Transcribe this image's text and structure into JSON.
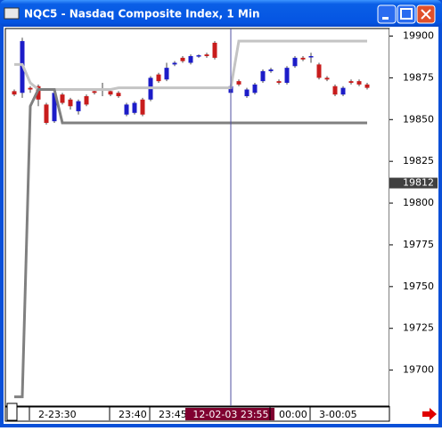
{
  "window_title": "NQC5 - Nasdaq Composite Index, 1 Min",
  "chart_data": {
    "type": "candlestick",
    "categories": [
      null,
      null,
      "2-23:30",
      null,
      null,
      null,
      null,
      null,
      null,
      null,
      null,
      null,
      "23:40",
      null,
      null,
      null,
      null,
      "23:45",
      null,
      null,
      null,
      null,
      null,
      null,
      null,
      null,
      null,
      "12-02-03  23:55",
      null,
      null,
      null,
      null,
      "00:00",
      null,
      null,
      null,
      null,
      "3-00:05",
      null,
      null,
      null,
      null,
      null,
      null,
      null
    ],
    "open": [
      19867,
      19866,
      19869,
      19870,
      19859,
      19849,
      19865,
      19862,
      19855,
      19864,
      19867,
      19868,
      19867,
      19866,
      19853,
      19854,
      19862,
      19862,
      19877,
      19874,
      19883,
      19887,
      19884,
      19888,
      19889,
      19896,
      null,
      19866,
      19873,
      19864,
      19866,
      19873,
      19879,
      19873,
      19872,
      19882,
      19887,
      19887.5,
      19883,
      19875,
      19870,
      19865,
      19873,
      19873,
      19871
    ],
    "high": [
      19868,
      19899,
      19870,
      19871,
      19860,
      19867,
      19866,
      19863,
      19862,
      19865,
      19868,
      19872,
      19868,
      19867,
      19860,
      19861,
      19863,
      19876,
      19878,
      19884,
      19885,
      19888,
      19889,
      19889,
      19890,
      19897,
      null,
      19873,
      19874,
      19869,
      19872,
      19880,
      19881,
      19874,
      19882,
      19888,
      19888,
      19890,
      19884,
      19876,
      19871,
      19870,
      19874,
      19874,
      19872
    ],
    "low": [
      19864,
      19863,
      19866,
      19858,
      19847,
      19848,
      19859,
      19856,
      19853,
      19858,
      19865,
      19864,
      19864,
      19863,
      19852,
      19853,
      19852,
      19861,
      19872,
      19873,
      19882,
      19884,
      19883,
      19887,
      19887,
      19886,
      null,
      19863,
      19870,
      19863,
      19865,
      19872,
      19878,
      19871,
      19871,
      19881,
      19885,
      19884,
      19874,
      19873,
      19864,
      19864,
      19871,
      19870,
      19868
    ],
    "close": [
      19865,
      19897,
      19868,
      19862,
      19848,
      19866,
      19860,
      19858,
      19861,
      19859,
      19866,
      19868.5,
      19865,
      19864,
      19859,
      19860,
      19853,
      19875,
      19873,
      19881,
      19884,
      19885,
      19888,
      19888.5,
      19888,
      19887,
      null,
      19870,
      19871,
      19868,
      19871,
      19879,
      19880,
      19872,
      19881,
      19887,
      19886,
      19888,
      19875,
      19874,
      19865,
      19869,
      19872,
      19871,
      19869
    ],
    "up_color": "#1c1cc8",
    "down_color": "#c81c1c",
    "lines": [
      {
        "color": "#c4c4c4",
        "values": [
          19883,
          19883,
          19872,
          19868,
          19868,
          19868,
          19868,
          19868,
          19868,
          19868,
          19868,
          19868,
          19868,
          19869,
          19869,
          19869,
          19869,
          19869,
          19869,
          19869,
          19869,
          19869,
          19869,
          19869,
          19869,
          19869,
          19869,
          19869,
          19897,
          19897,
          19897,
          19897,
          19897,
          19897,
          19897,
          19897,
          19897,
          19897,
          19897,
          19897,
          19897,
          19897,
          19897,
          19897,
          19897
        ]
      },
      {
        "color": "#808080",
        "values": [
          19684,
          19684,
          19858,
          19868,
          19868,
          19868,
          19848,
          19848,
          19848,
          19848,
          19848,
          19848,
          19848,
          19848,
          19848,
          19848,
          19848,
          19848,
          19848,
          19848,
          19848,
          19848,
          19848,
          19848,
          19848,
          19848,
          19848,
          19848,
          19848,
          19848,
          19848,
          19848,
          19848,
          19848,
          19848,
          19848,
          19848,
          19848,
          19848,
          19848,
          19848,
          19848,
          19848,
          19848,
          19848
        ]
      }
    ],
    "cursor_index": 27,
    "cursor_price": 19812,
    "ylim": [
      19679,
      19904
    ],
    "yticks": [
      19700,
      19725,
      19750,
      19775,
      19800,
      19825,
      19850,
      19875,
      19900
    ]
  }
}
